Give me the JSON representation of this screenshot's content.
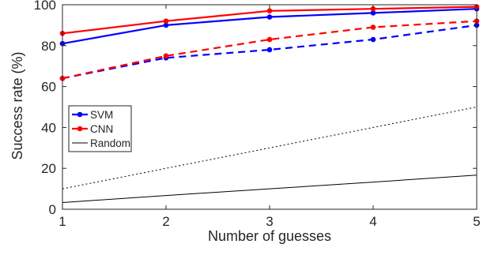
{
  "chart_data": {
    "type": "line",
    "title": "",
    "xlabel": "Number of guesses",
    "ylabel": "Success rate (%)",
    "xlim": [
      1,
      5
    ],
    "ylim": [
      0,
      100
    ],
    "x": [
      1,
      2,
      3,
      4,
      5
    ],
    "xticks": [
      "1",
      "2",
      "3",
      "4",
      "5"
    ],
    "yticks": [
      "0",
      "20",
      "40",
      "60",
      "80",
      "100"
    ],
    "grid": false,
    "legend_position": "left",
    "legend": [
      {
        "label": "SVM",
        "color": "#0000ff",
        "style": "solid",
        "marker": "dot"
      },
      {
        "label": "CNN",
        "color": "#ff0000",
        "style": "solid",
        "marker": "dot"
      },
      {
        "label": "Random",
        "color": "#000000",
        "style": "solid",
        "marker": "none"
      }
    ],
    "series": [
      {
        "name": "SVM",
        "color": "#0000ff",
        "style": "solid",
        "marker": true,
        "values": [
          81,
          90,
          94,
          96,
          98
        ]
      },
      {
        "name": "CNN",
        "color": "#ff0000",
        "style": "solid",
        "marker": true,
        "values": [
          86,
          92,
          97,
          98,
          99
        ]
      },
      {
        "name": "SVM",
        "color": "#0000ff",
        "style": "dashed",
        "marker": true,
        "values": [
          64,
          74,
          78,
          83,
          90
        ]
      },
      {
        "name": "CNN",
        "color": "#ff0000",
        "style": "dashed",
        "marker": true,
        "values": [
          64,
          75,
          83,
          89,
          92
        ]
      },
      {
        "name": "Random",
        "color": "#000000",
        "style": "dotted",
        "marker": false,
        "values": [
          10,
          20,
          30,
          40,
          50
        ]
      },
      {
        "name": "Random",
        "color": "#000000",
        "style": "solid",
        "marker": false,
        "values": [
          3.3,
          6.7,
          10,
          13.3,
          16.7
        ]
      }
    ]
  }
}
